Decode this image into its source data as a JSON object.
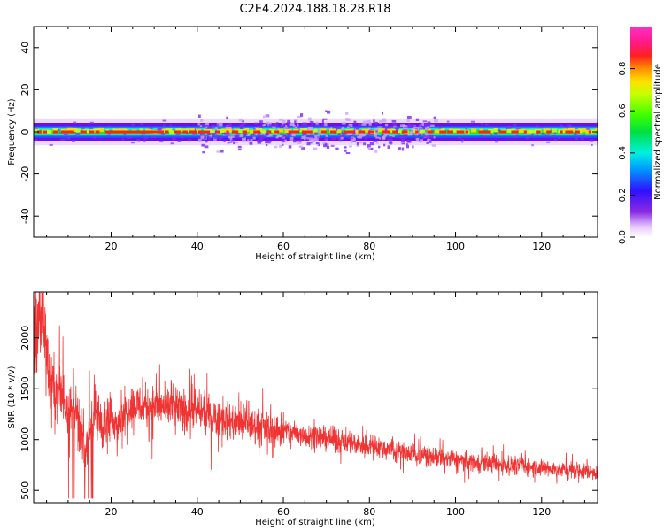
{
  "figure_title": "C2E4.2024.188.18.28.R18",
  "chart_data": [
    {
      "type": "heatmap",
      "xlabel": "Height of straight line (km)",
      "ylabel": "Frequency (Hz)",
      "xlim": [
        2,
        133
      ],
      "ylim": [
        -50,
        50
      ],
      "x_ticks": [
        20,
        40,
        60,
        80,
        100,
        120
      ],
      "y_ticks": [
        -40,
        -20,
        0,
        20,
        40
      ],
      "colorbar": {
        "label": "Normalized spectral amplitude",
        "range": [
          0,
          1
        ],
        "ticks": [
          0.0,
          0.2,
          0.4,
          0.6,
          0.8
        ],
        "colormap": "gist_ncar-like (purple-blue-cyan-green-yellow-red-magenta)"
      },
      "description_of_values": "Energy concentrated in a narrow band around 0 Hz (about ±4 Hz) across all heights; peak amplitudes (red) along 0 Hz, with weak purple scatter up to about ±12 Hz between 40 and 95 km.",
      "band_center_hz": 0,
      "band_halfwidth_hz": 4,
      "scatter_halfwidth_hz": 12,
      "scatter_range_km": [
        40,
        95
      ]
    },
    {
      "type": "line",
      "xlabel": "Height of straight line (km)",
      "ylabel": "SNR (10 * v/v)",
      "xlim": [
        2,
        133
      ],
      "ylim": [
        380,
        2450
      ],
      "x_ticks": [
        20,
        40,
        60,
        80,
        100,
        120
      ],
      "y_ticks": [
        500,
        1000,
        1500,
        2000
      ],
      "color": "#f03434",
      "series": [
        {
          "x": [
            2,
            4,
            6,
            8,
            10,
            12,
            14,
            16,
            18,
            20,
            25,
            30,
            35,
            40,
            45,
            50,
            55,
            60,
            65,
            70,
            75,
            80,
            85,
            90,
            95,
            100,
            105,
            110,
            115,
            120,
            125,
            130,
            133
          ],
          "values": [
            1900,
            2300,
            1500,
            1450,
            1350,
            1200,
            900,
            1300,
            1150,
            1150,
            1350,
            1330,
            1300,
            1280,
            1220,
            1150,
            1110,
            1080,
            1050,
            1010,
            980,
            940,
            900,
            860,
            830,
            800,
            780,
            760,
            740,
            720,
            700,
            690,
            680
          ]
        }
      ]
    }
  ]
}
